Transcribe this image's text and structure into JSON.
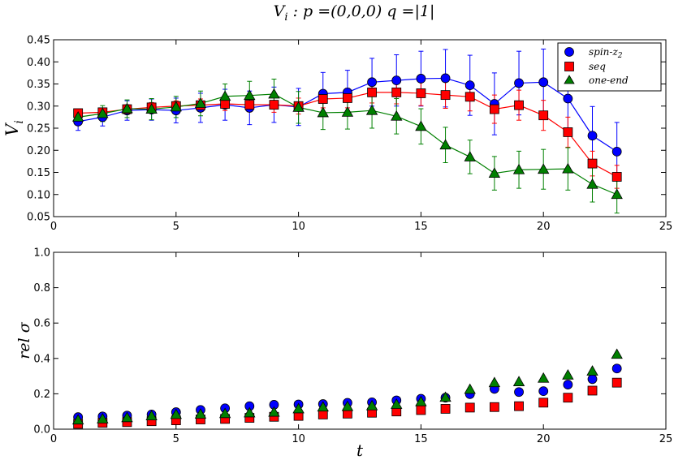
{
  "figure_title": "V_i : p=(0,0,0)  q=|1|",
  "title_parts": {
    "v": "V",
    "sub": "i",
    "rest": " : p =(0,0,0)  q =|1|"
  },
  "colors": {
    "spin": "#0000ff",
    "seq": "#ff0000",
    "oneend": "#008000",
    "edge": "#000000"
  },
  "chart_data": [
    {
      "type": "line",
      "ylabel": "V_i",
      "ylabel_parts": {
        "v": "V",
        "sub": "i"
      },
      "xlabel": "",
      "xlim": [
        0,
        25
      ],
      "ylim": [
        0.05,
        0.45
      ],
      "xticks": [
        "0",
        "5",
        "10",
        "15",
        "20",
        "25"
      ],
      "yticks": [
        "0.05",
        "0.10",
        "0.15",
        "0.20",
        "0.25",
        "0.30",
        "0.35",
        "0.40",
        "0.45"
      ],
      "legend": {
        "placement": "top-right",
        "entries": [
          "spin-z2",
          "seq",
          "one-end"
        ]
      },
      "legend_parts": [
        {
          "main": "spin-z",
          "sub": "2"
        },
        {
          "main": "seq",
          "sub": ""
        },
        {
          "main": "one-end",
          "sub": ""
        }
      ],
      "x": [
        1,
        2,
        3,
        4,
        5,
        6,
        7,
        8,
        9,
        10,
        11,
        12,
        13,
        14,
        15,
        16,
        17,
        18,
        19,
        20,
        21,
        22,
        23
      ],
      "series": [
        {
          "name": "spin-z2",
          "marker": "circle",
          "values": [
            0.265,
            0.275,
            0.29,
            0.292,
            0.29,
            0.296,
            0.303,
            0.296,
            0.303,
            0.298,
            0.328,
            0.331,
            0.354,
            0.358,
            0.362,
            0.363,
            0.347,
            0.305,
            0.352,
            0.354,
            0.317,
            0.233,
            0.197
          ],
          "errors": [
            0.02,
            0.02,
            0.022,
            0.024,
            0.028,
            0.033,
            0.035,
            0.038,
            0.04,
            0.042,
            0.048,
            0.05,
            0.054,
            0.058,
            0.062,
            0.065,
            0.068,
            0.07,
            0.072,
            0.075,
            0.07,
            0.066,
            0.066
          ]
        },
        {
          "name": "seq",
          "marker": "square",
          "values": [
            0.284,
            0.286,
            0.293,
            0.297,
            0.3,
            0.302,
            0.305,
            0.303,
            0.303,
            0.3,
            0.316,
            0.318,
            0.331,
            0.331,
            0.329,
            0.325,
            0.321,
            0.293,
            0.302,
            0.279,
            0.241,
            0.17,
            0.14
          ],
          "errors": [
            0.008,
            0.009,
            0.01,
            0.011,
            0.012,
            0.014,
            0.015,
            0.016,
            0.017,
            0.018,
            0.02,
            0.022,
            0.024,
            0.026,
            0.028,
            0.03,
            0.032,
            0.032,
            0.034,
            0.034,
            0.034,
            0.028,
            0.026
          ]
        },
        {
          "name": "one-end",
          "marker": "triangle",
          "values": [
            0.275,
            0.283,
            0.294,
            0.293,
            0.298,
            0.306,
            0.322,
            0.324,
            0.327,
            0.297,
            0.285,
            0.286,
            0.29,
            0.277,
            0.254,
            0.212,
            0.185,
            0.148,
            0.156,
            0.157,
            0.158,
            0.123,
            0.1
          ],
          "errors": [
            0.014,
            0.018,
            0.02,
            0.024,
            0.024,
            0.028,
            0.028,
            0.032,
            0.034,
            0.036,
            0.038,
            0.038,
            0.04,
            0.04,
            0.04,
            0.04,
            0.038,
            0.038,
            0.042,
            0.045,
            0.048,
            0.04,
            0.042
          ]
        }
      ]
    },
    {
      "type": "scatter",
      "ylabel": "rel σ",
      "ylabel_parts": {
        "a": "rel",
        "b": "σ"
      },
      "xlabel": "t",
      "xlim": [
        0,
        25
      ],
      "ylim": [
        0.0,
        1.0
      ],
      "xticks": [
        "0",
        "5",
        "10",
        "15",
        "20",
        "25"
      ],
      "yticks": [
        "0.0",
        "0.2",
        "0.4",
        "0.6",
        "0.8",
        "1.0"
      ],
      "x": [
        1,
        2,
        3,
        4,
        5,
        6,
        7,
        8,
        9,
        10,
        11,
        12,
        13,
        14,
        15,
        16,
        17,
        18,
        19,
        20,
        21,
        22,
        23
      ],
      "series": [
        {
          "name": "spin-z2",
          "marker": "circle",
          "values": [
            0.068,
            0.072,
            0.077,
            0.083,
            0.096,
            0.109,
            0.118,
            0.13,
            0.138,
            0.14,
            0.142,
            0.149,
            0.152,
            0.163,
            0.172,
            0.178,
            0.198,
            0.228,
            0.21,
            0.215,
            0.252,
            0.283,
            0.343
          ]
        },
        {
          "name": "seq",
          "marker": "square",
          "values": [
            0.03,
            0.036,
            0.04,
            0.045,
            0.05,
            0.055,
            0.058,
            0.064,
            0.07,
            0.075,
            0.083,
            0.088,
            0.093,
            0.1,
            0.108,
            0.115,
            0.122,
            0.125,
            0.13,
            0.15,
            0.178,
            0.218,
            0.263
          ]
        },
        {
          "name": "one-end",
          "marker": "triangle",
          "values": [
            0.052,
            0.058,
            0.065,
            0.075,
            0.083,
            0.085,
            0.088,
            0.092,
            0.096,
            0.115,
            0.125,
            0.128,
            0.132,
            0.14,
            0.155,
            0.18,
            0.225,
            0.263,
            0.268,
            0.288,
            0.306,
            0.328,
            0.423
          ]
        }
      ]
    }
  ]
}
